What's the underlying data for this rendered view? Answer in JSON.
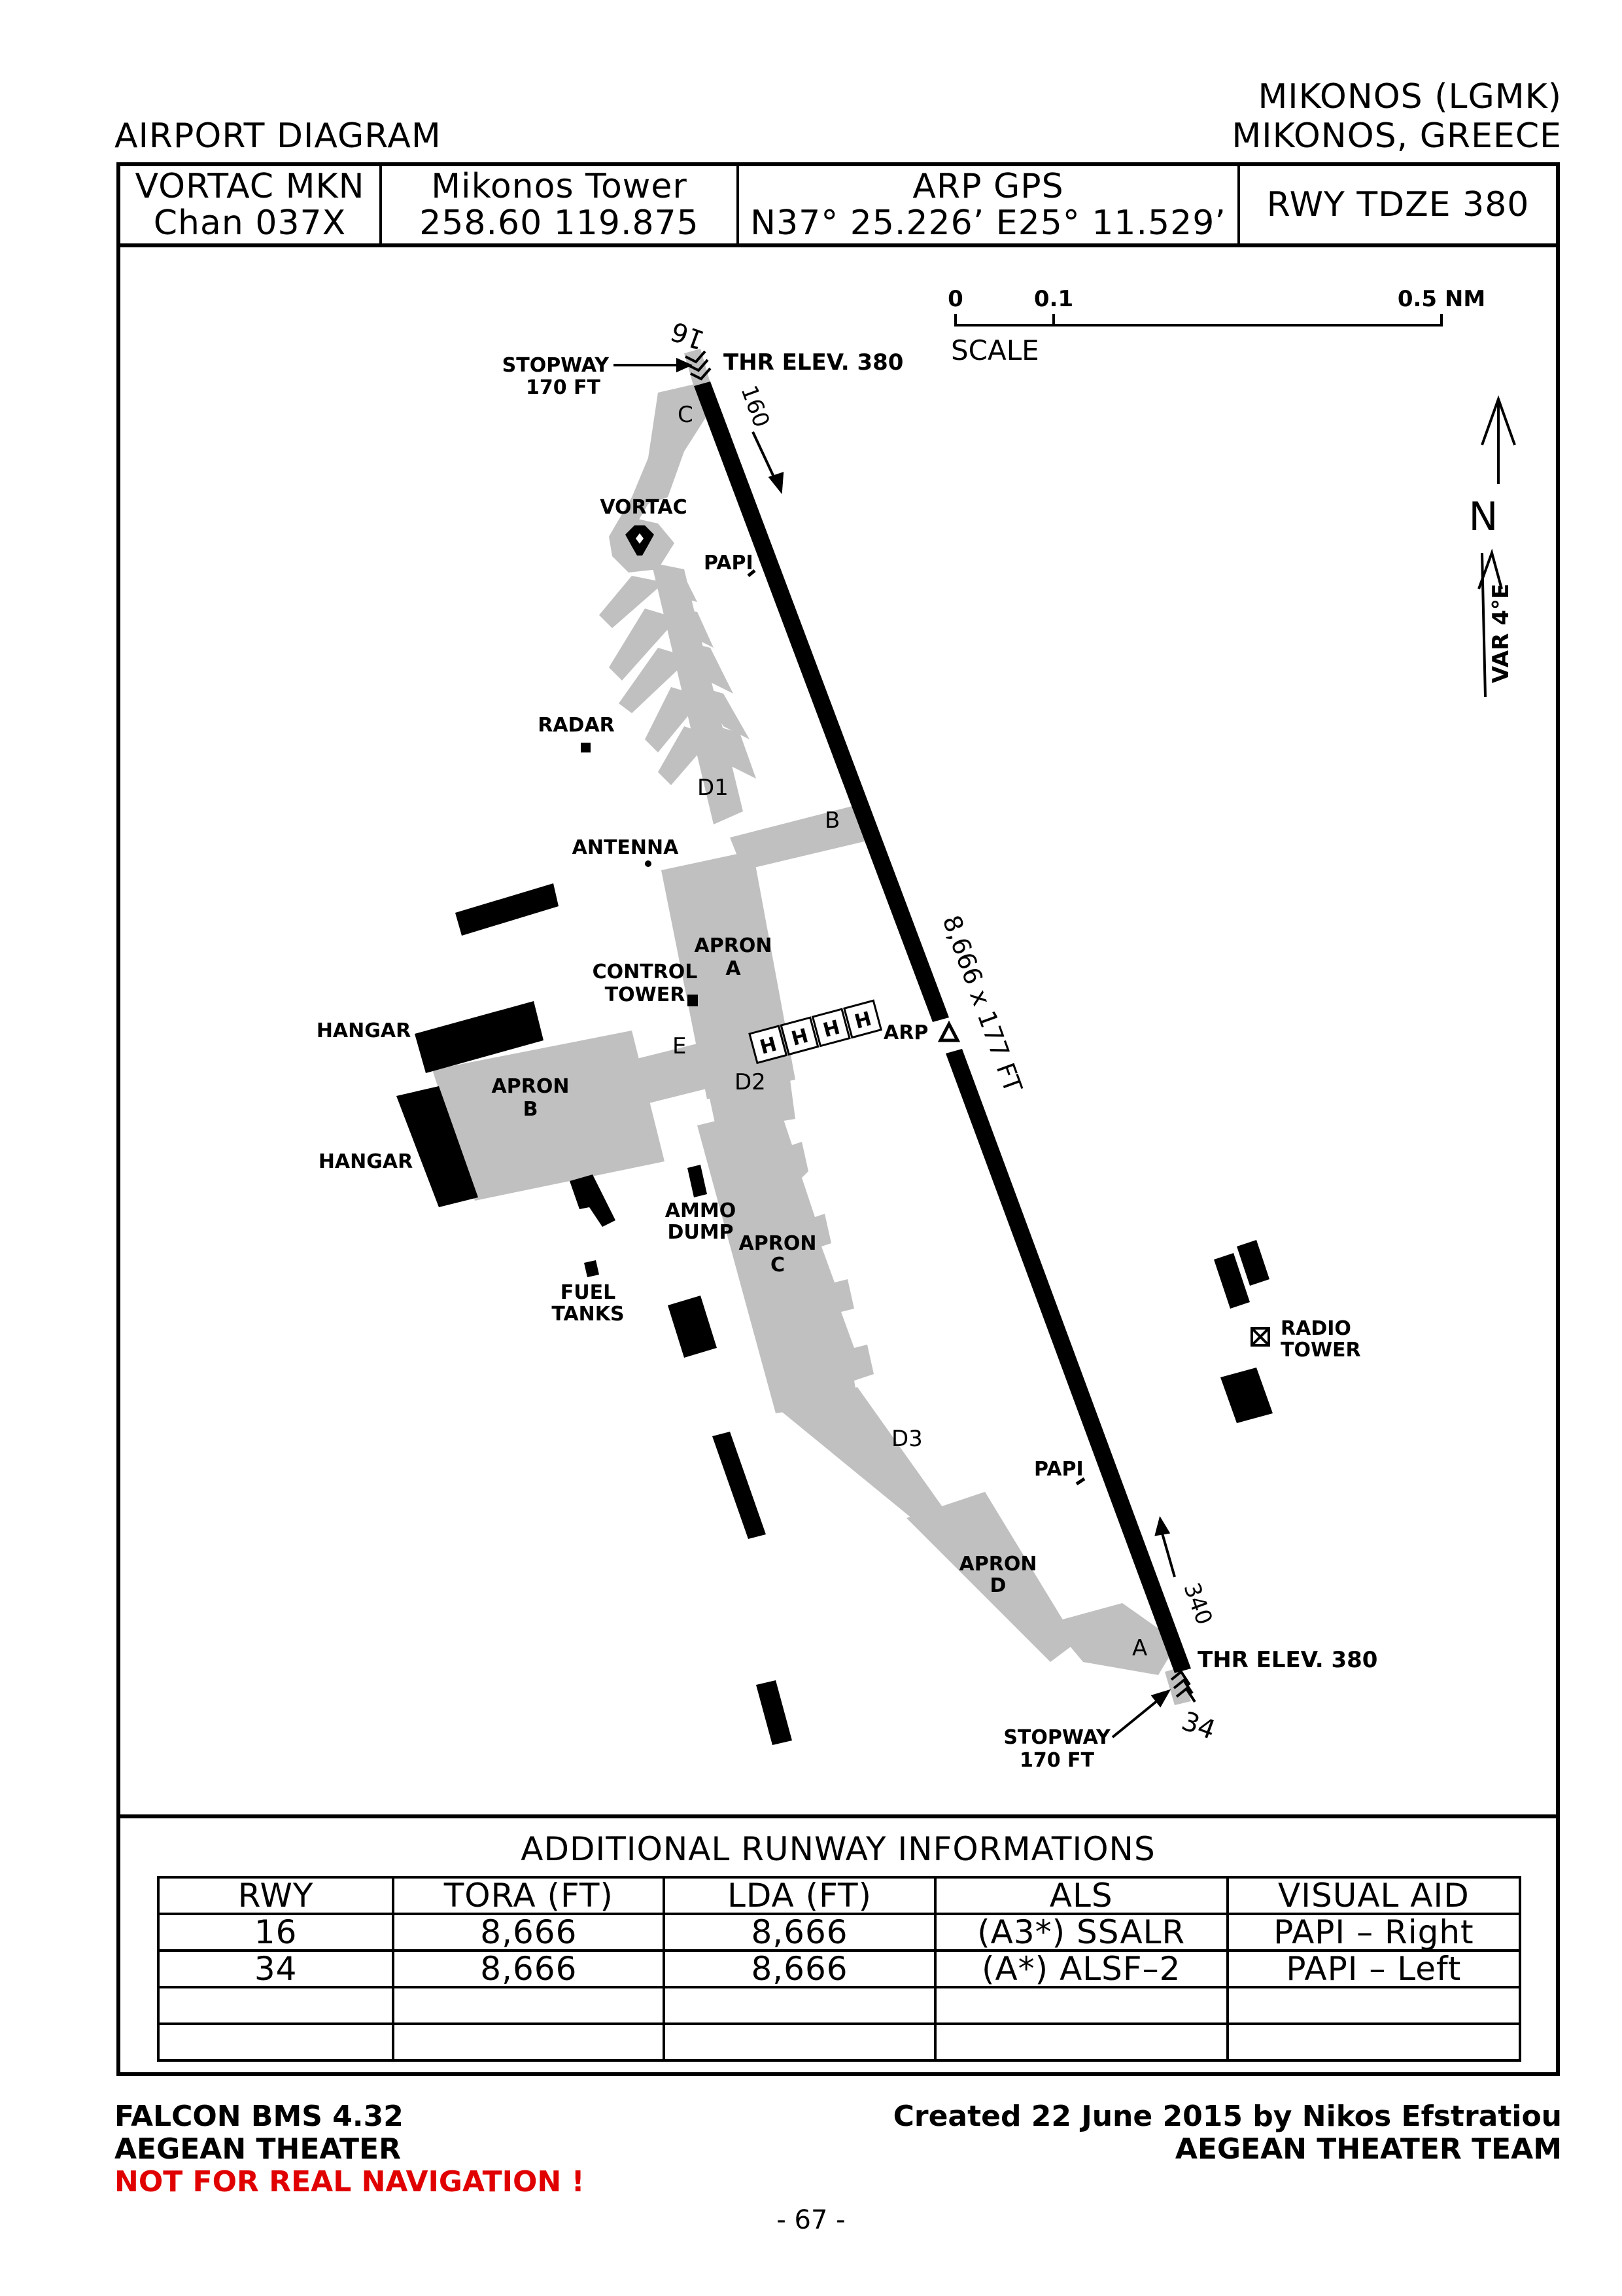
{
  "header": {
    "diagram_title": "AIRPORT DIAGRAM",
    "airport_name": "MIKONOS (LGMK)",
    "airport_location": "MIKONOS, GREECE"
  },
  "info_bar": {
    "vortac_line1": "VORTAC MKN",
    "vortac_line2": "Chan 037X",
    "tower_line1": "Mikonos Tower",
    "tower_line2": "258.60 119.875",
    "arp_line1": "ARP GPS",
    "arp_line2": "N37° 25.226’ E25° 11.529’",
    "tdze": "RWY TDZE 380"
  },
  "scale": {
    "label": "SCALE",
    "tick0": "0",
    "tick1": "0.1",
    "tick2": "0.5 NM"
  },
  "north": {
    "n_label": "N",
    "var_label": "VAR 4°E"
  },
  "map_labels": {
    "rwy16_num": "16",
    "rwy34_num": "34",
    "hdg160": "160",
    "hdg340": "340",
    "stopway_n_1": "STOPWAY",
    "stopway_n_2": "170 FT",
    "stopway_s_1": "STOPWAY",
    "stopway_s_2": "170 FT",
    "thr_n": "THR ELEV. 380",
    "thr_s": "THR ELEV. 380",
    "rwy_dims": "8,666 x 177 FT",
    "arp": "ARP",
    "vortac": "VORTAC",
    "papi_n": "PAPI",
    "papi_s": "PAPI",
    "radar": "RADAR",
    "antenna": "ANTENNA",
    "control_tower_1": "CONTROL",
    "control_tower_2": "TOWER",
    "hangar_1": "HANGAR",
    "hangar_2": "HANGAR",
    "apron_a_1": "APRON",
    "apron_a_2": "A",
    "apron_b_1": "APRON",
    "apron_b_2": "B",
    "apron_c_1": "APRON",
    "apron_c_2": "C",
    "apron_d_1": "APRON",
    "apron_d_2": "D",
    "ammo_1": "AMMO",
    "ammo_2": "DUMP",
    "fuel_1": "FUEL",
    "fuel_2": "TANKS",
    "radio_tower_1": "RADIO",
    "radio_tower_2": "TOWER",
    "twy_a": "A",
    "twy_b": "B",
    "twy_c": "C",
    "twy_d1": "D1",
    "twy_d2": "D2",
    "twy_d3": "D3",
    "twy_e": "E",
    "helipad": "H"
  },
  "runway_info": {
    "title": "ADDITIONAL RUNWAY INFORMATIONS",
    "headers": [
      "RWY",
      "TORA (FT)",
      "LDA (FT)",
      "ALS",
      "VISUAL AID"
    ],
    "rows": [
      [
        "16",
        "8,666",
        "8,666",
        "(A3*) SSALR",
        "PAPI – Right"
      ],
      [
        "34",
        "8,666",
        "8,666",
        "(A*) ALSF–2",
        "PAPI – Left"
      ],
      [
        "",
        "",
        "",
        "",
        ""
      ],
      [
        "",
        "",
        "",
        "",
        ""
      ]
    ]
  },
  "footer": {
    "left1": "FALCON BMS 4.32",
    "left2": "AEGEAN THEATER",
    "warning": "NOT FOR REAL NAVIGATION !",
    "right1": "Created 22 June 2015 by Nikos Efstratiou",
    "right2": "AEGEAN THEATER TEAM",
    "page": "- 67 -"
  },
  "colors": {
    "paved": "#c0c0c0",
    "runway": "#000000",
    "warning": "#e00000"
  }
}
